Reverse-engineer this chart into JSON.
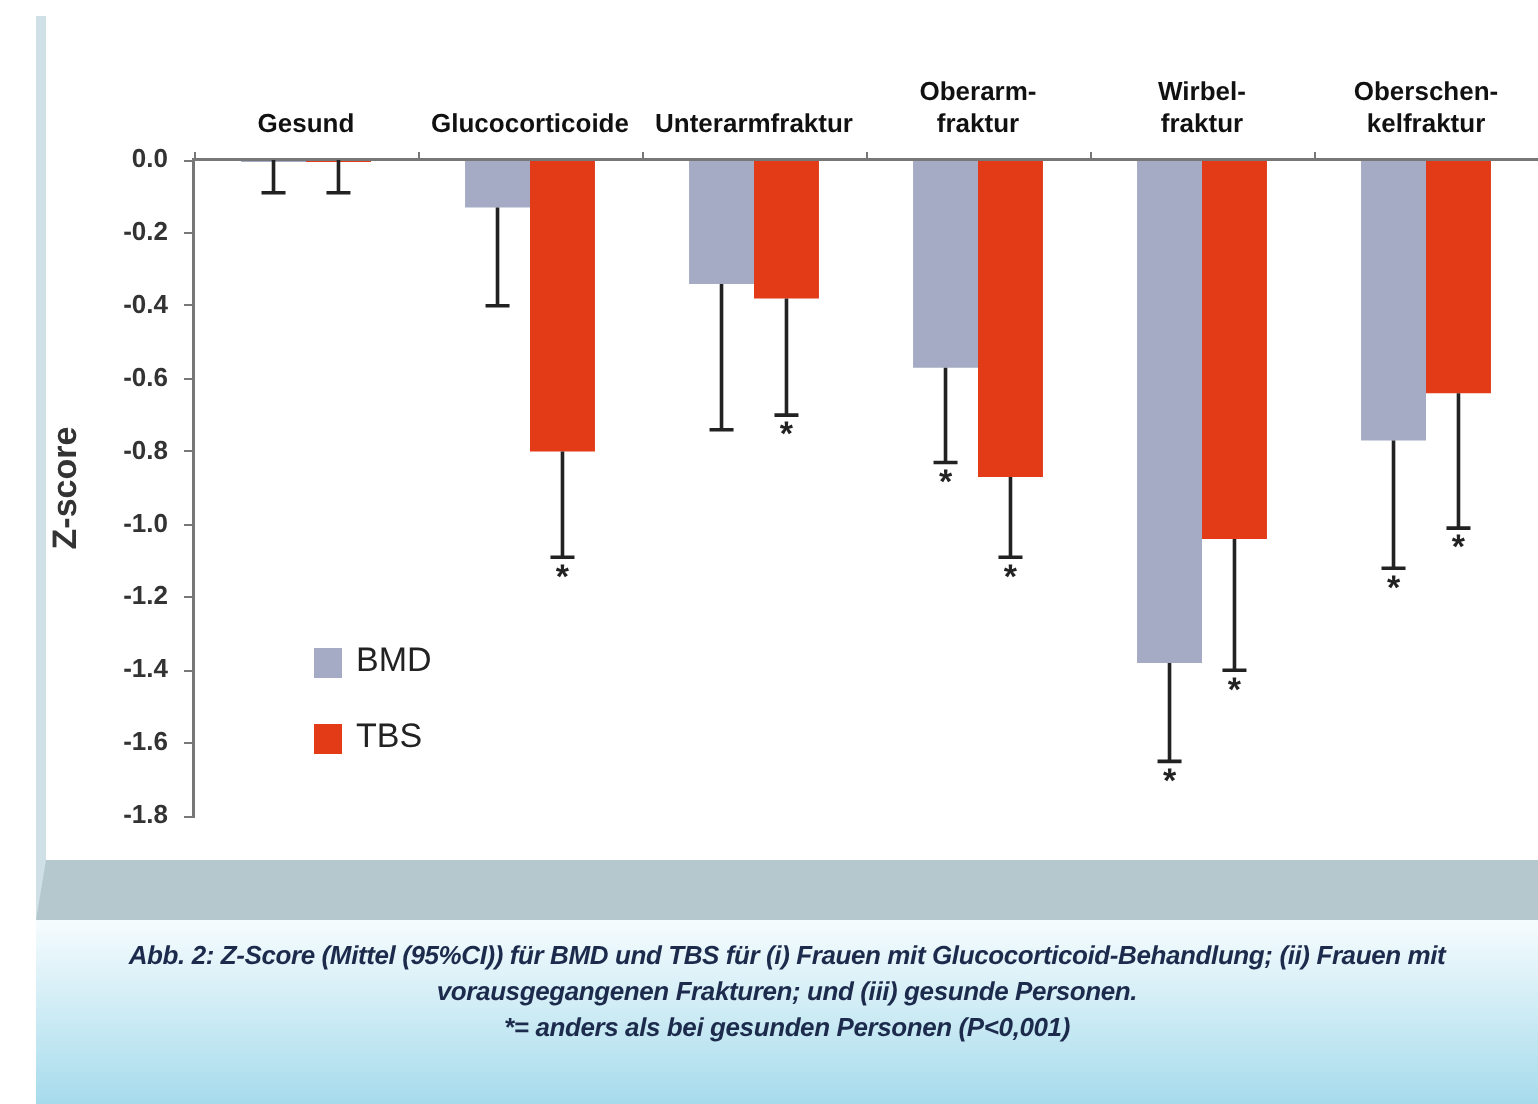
{
  "chart_data": {
    "type": "bar",
    "categories": [
      "Gesund",
      "Glucocorticoide",
      "Unterarmfraktur",
      "Oberarm- fraktur",
      "Wirbel- fraktur",
      "Oberschen- kelfraktur"
    ],
    "series": [
      {
        "name": "BMD",
        "color": "#a5abc5",
        "values": [
          0,
          -0.13,
          -0.34,
          -0.57,
          -1.38,
          -0.77
        ],
        "errors": [
          [
            -0.09,
            0
          ],
          [
            -0.4,
            -0.13
          ],
          [
            -0.74,
            -0.34
          ],
          [
            -0.83,
            -0.57
          ],
          [
            -1.65,
            -1.38
          ],
          [
            -1.12,
            -0.77
          ]
        ]
      },
      {
        "name": "TBS",
        "color": "#e33a18",
        "values": [
          0,
          -0.8,
          -0.38,
          -0.87,
          -1.04,
          -0.64
        ],
        "errors": [
          [
            -0.09,
            0
          ],
          [
            -1.09,
            -0.8
          ],
          [
            -0.7,
            -0.38
          ],
          [
            -1.09,
            -0.87
          ],
          [
            -1.4,
            -1.04
          ],
          [
            -1.01,
            -0.64
          ]
        ]
      }
    ],
    "ylim": [
      -1.8,
      0
    ],
    "yticks": [
      {
        "value": 0,
        "label": "0.0"
      },
      -0.2,
      -0.4,
      -0.6,
      -0.8,
      {
        "value": -1,
        "label": "-1.0"
      },
      -1.2,
      -1.4,
      -1.6,
      -1.8
    ],
    "ylabel": "Z-score",
    "legend": "bottom left",
    "annotations": [
      "*",
      "*",
      "*",
      "*",
      "*",
      "*",
      "*",
      "*",
      "Abb. 2: Z-Score (Mittel (95%CI)) für BMD und TBS für (i) Frauen mit Glucocorticoid-Behandlung; (ii) Frauen mit vorausgegangenen Frakturen; und (iii) gesunde Personen.",
      "*= anders als bei gesunden Personen (P<0,001)"
    ]
  }
}
